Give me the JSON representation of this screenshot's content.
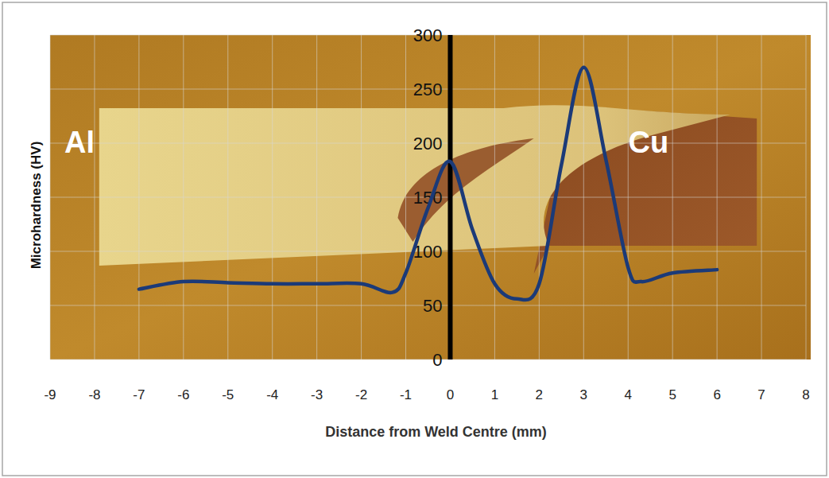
{
  "chart_data": {
    "type": "line",
    "x_label": "Distance from Weld Centre (mm)",
    "y_label": "Microhardness (HV)",
    "annotations": [
      "Al",
      "Cu"
    ],
    "x": [
      -7,
      -6,
      -5,
      -4,
      -3,
      -2,
      -1.3,
      -1,
      -0.5,
      0,
      0.5,
      1,
      1.5,
      2,
      2.5,
      3,
      3.5,
      4,
      4.3,
      5,
      6
    ],
    "values": [
      65,
      72,
      71,
      70,
      70,
      70,
      62,
      80,
      140,
      183,
      120,
      70,
      56,
      70,
      180,
      270,
      185,
      85,
      72,
      80,
      83
    ],
    "color": "#1b3a78",
    "xlim": [
      -9,
      8
    ],
    "xticks": [
      -9,
      -8,
      -7,
      -6,
      -5,
      -4,
      -3,
      -2,
      -1,
      0,
      1,
      2,
      3,
      4,
      5,
      6,
      7,
      8
    ],
    "ylim": [
      0,
      300
    ],
    "yticks": [
      0,
      50,
      100,
      150,
      200,
      250,
      300
    ],
    "grid": true
  }
}
